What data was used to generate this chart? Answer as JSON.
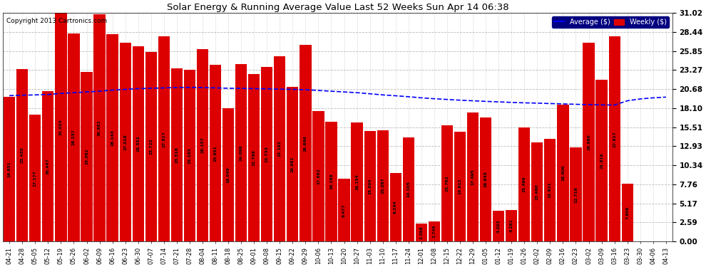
{
  "title": "Solar Energy & Running Average Value Last 52 Weeks Sun Apr 14 06:38",
  "copyright": "Copyright 2013 Cartronics.com",
  "bar_color": "#DD0000",
  "avg_line_color": "#0000FF",
  "background_color": "#FFFFFF",
  "plot_bg_color": "#FFFFFF",
  "grid_color": "#BBBBBB",
  "categories": [
    "04-21",
    "04-28",
    "05-05",
    "05-12",
    "05-19",
    "05-26",
    "06-02",
    "06-09",
    "06-16",
    "06-23",
    "06-30",
    "07-07",
    "07-14",
    "07-21",
    "07-28",
    "08-04",
    "08-11",
    "08-18",
    "08-25",
    "09-01",
    "09-08",
    "09-15",
    "09-22",
    "09-29",
    "10-06",
    "10-13",
    "10-20",
    "10-27",
    "11-03",
    "11-10",
    "11-17",
    "11-24",
    "12-01",
    "12-08",
    "12-15",
    "12-22",
    "12-29",
    "01-05",
    "01-12",
    "01-19",
    "01-26",
    "02-02",
    "02-09",
    "02-16",
    "02-23",
    "03-02",
    "03-09",
    "03-16",
    "03-23",
    "03-30",
    "04-06",
    "04-13"
  ],
  "values": [
    19.651,
    23.435,
    17.177,
    20.447,
    31.024,
    28.257,
    23.062,
    30.882,
    28.143,
    27.018,
    26.552,
    25.722,
    27.817,
    23.518,
    23.285,
    26.157,
    23.951,
    18.049,
    24.098,
    22.768,
    23.733,
    25.193,
    20.981,
    26.666,
    17.692,
    16.269,
    8.477,
    16.154,
    15.004,
    15.087,
    9.244,
    14.105,
    2.398,
    2.745,
    15.762,
    14.912,
    17.495,
    16.845,
    4.203,
    4.281,
    15.499,
    13.46,
    13.921,
    18.6,
    12.718,
    26.98,
    21.919,
    27.817,
    7.809,
    0.0,
    0.0,
    0.0
  ],
  "avg_values": [
    19.8,
    19.85,
    19.9,
    19.95,
    20.1,
    20.2,
    20.3,
    20.4,
    20.55,
    20.65,
    20.75,
    20.8,
    20.85,
    20.9,
    20.92,
    20.9,
    20.85,
    20.8,
    20.78,
    20.75,
    20.72,
    20.68,
    20.65,
    20.6,
    20.5,
    20.4,
    20.3,
    20.2,
    20.05,
    19.9,
    19.78,
    19.65,
    19.5,
    19.38,
    19.28,
    19.18,
    19.1,
    19.02,
    18.95,
    18.88,
    18.82,
    18.78,
    18.72,
    18.68,
    18.62,
    18.58,
    18.54,
    18.52,
    19.1,
    19.35,
    19.5,
    19.6
  ],
  "ylim": [
    0.0,
    31.02
  ],
  "yticks": [
    0.0,
    2.59,
    5.17,
    7.76,
    10.34,
    12.93,
    15.51,
    18.1,
    20.68,
    23.27,
    25.85,
    28.44,
    31.02
  ]
}
